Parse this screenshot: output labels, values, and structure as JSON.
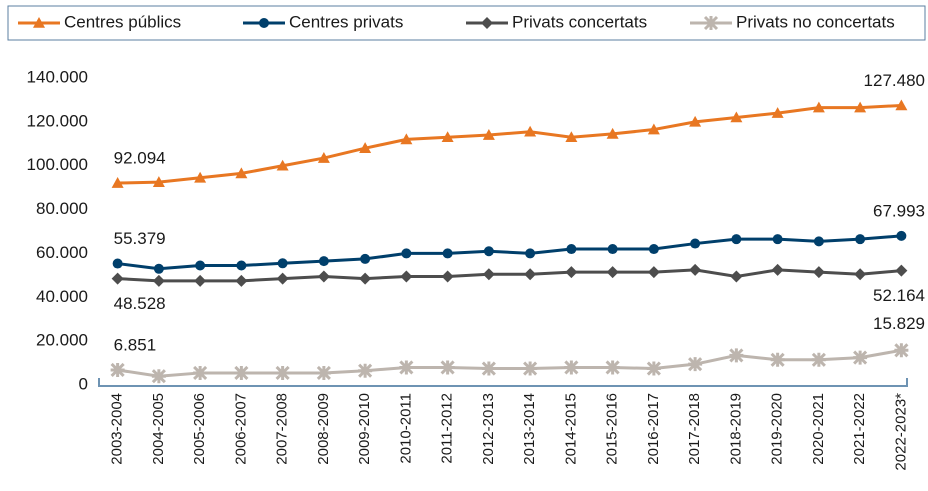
{
  "chart_data": {
    "type": "line",
    "categories": [
      "2003-2004",
      "2004-2005",
      "2005-2006",
      "2006-2007",
      "2007-2008",
      "2008-2009",
      "2009-2010",
      "2010-2011",
      "2011-2012",
      "2012-2013",
      "2013-2014",
      "2014-2015",
      "2015-2016",
      "2016-2017",
      "2017-2018",
      "2018-2019",
      "2019-2020",
      "2020-2021",
      "2021-2022",
      "2022-2023*"
    ],
    "series": [
      {
        "name": "Centres públics",
        "color": "#e87722",
        "marker": "triangle",
        "values": [
          92094,
          92500,
          94500,
          96500,
          100000,
          103500,
          108000,
          112000,
          113000,
          114000,
          115500,
          113000,
          114500,
          116500,
          120000,
          122000,
          124000,
          126500,
          126500,
          127480
        ],
        "value_labels": [
          "92.094",
          null,
          null,
          null,
          null,
          null,
          null,
          null,
          null,
          null,
          null,
          null,
          null,
          null,
          null,
          null,
          null,
          null,
          null,
          "127.480"
        ]
      },
      {
        "name": "Centres privats",
        "color": "#003f6b",
        "marker": "circle",
        "values": [
          55379,
          53000,
          54500,
          54500,
          55500,
          56500,
          57500,
          60000,
          60000,
          61000,
          60000,
          62000,
          62000,
          62000,
          64500,
          66500,
          66500,
          65500,
          66500,
          67993
        ],
        "value_labels": [
          "55.379",
          null,
          null,
          null,
          null,
          null,
          null,
          null,
          null,
          null,
          null,
          null,
          null,
          null,
          null,
          null,
          null,
          null,
          null,
          "67.993"
        ]
      },
      {
        "name": "Privats concertats",
        "color": "#4d4d4d",
        "marker": "diamond",
        "values": [
          48528,
          47500,
          47500,
          47500,
          48500,
          49500,
          48500,
          49500,
          49500,
          50500,
          50500,
          51500,
          51500,
          51500,
          52500,
          49500,
          52500,
          51500,
          50500,
          52164
        ],
        "value_labels": [
          "48.528",
          null,
          null,
          null,
          null,
          null,
          null,
          null,
          null,
          null,
          null,
          null,
          null,
          null,
          null,
          null,
          null,
          null,
          null,
          "52.164"
        ]
      },
      {
        "name": "Privats no concertats",
        "color": "#bdb5ae",
        "marker": "star",
        "values": [
          6851,
          4000,
          5500,
          5500,
          5500,
          5500,
          6500,
          8000,
          8000,
          7500,
          7500,
          8000,
          8000,
          7500,
          9500,
          13500,
          11500,
          11500,
          12500,
          15829
        ],
        "value_labels": [
          "6.851",
          null,
          null,
          null,
          null,
          null,
          null,
          null,
          null,
          null,
          null,
          null,
          null,
          null,
          null,
          null,
          null,
          null,
          null,
          "15.829"
        ]
      }
    ],
    "ylim": [
      0,
      140000
    ],
    "yticks": [
      0,
      {
        "value": 20000,
        "label": "20.000"
      },
      {
        "value": 40000,
        "label": "40.000"
      },
      {
        "value": 60000,
        "label": "60.000"
      },
      {
        "value": 80000,
        "label": "80.000"
      },
      {
        "value": 100000,
        "label": "100.000"
      },
      {
        "value": 120000,
        "label": "120.000"
      },
      {
        "value": 140000,
        "label": "140.000"
      }
    ],
    "grid": false,
    "legend": "top"
  }
}
